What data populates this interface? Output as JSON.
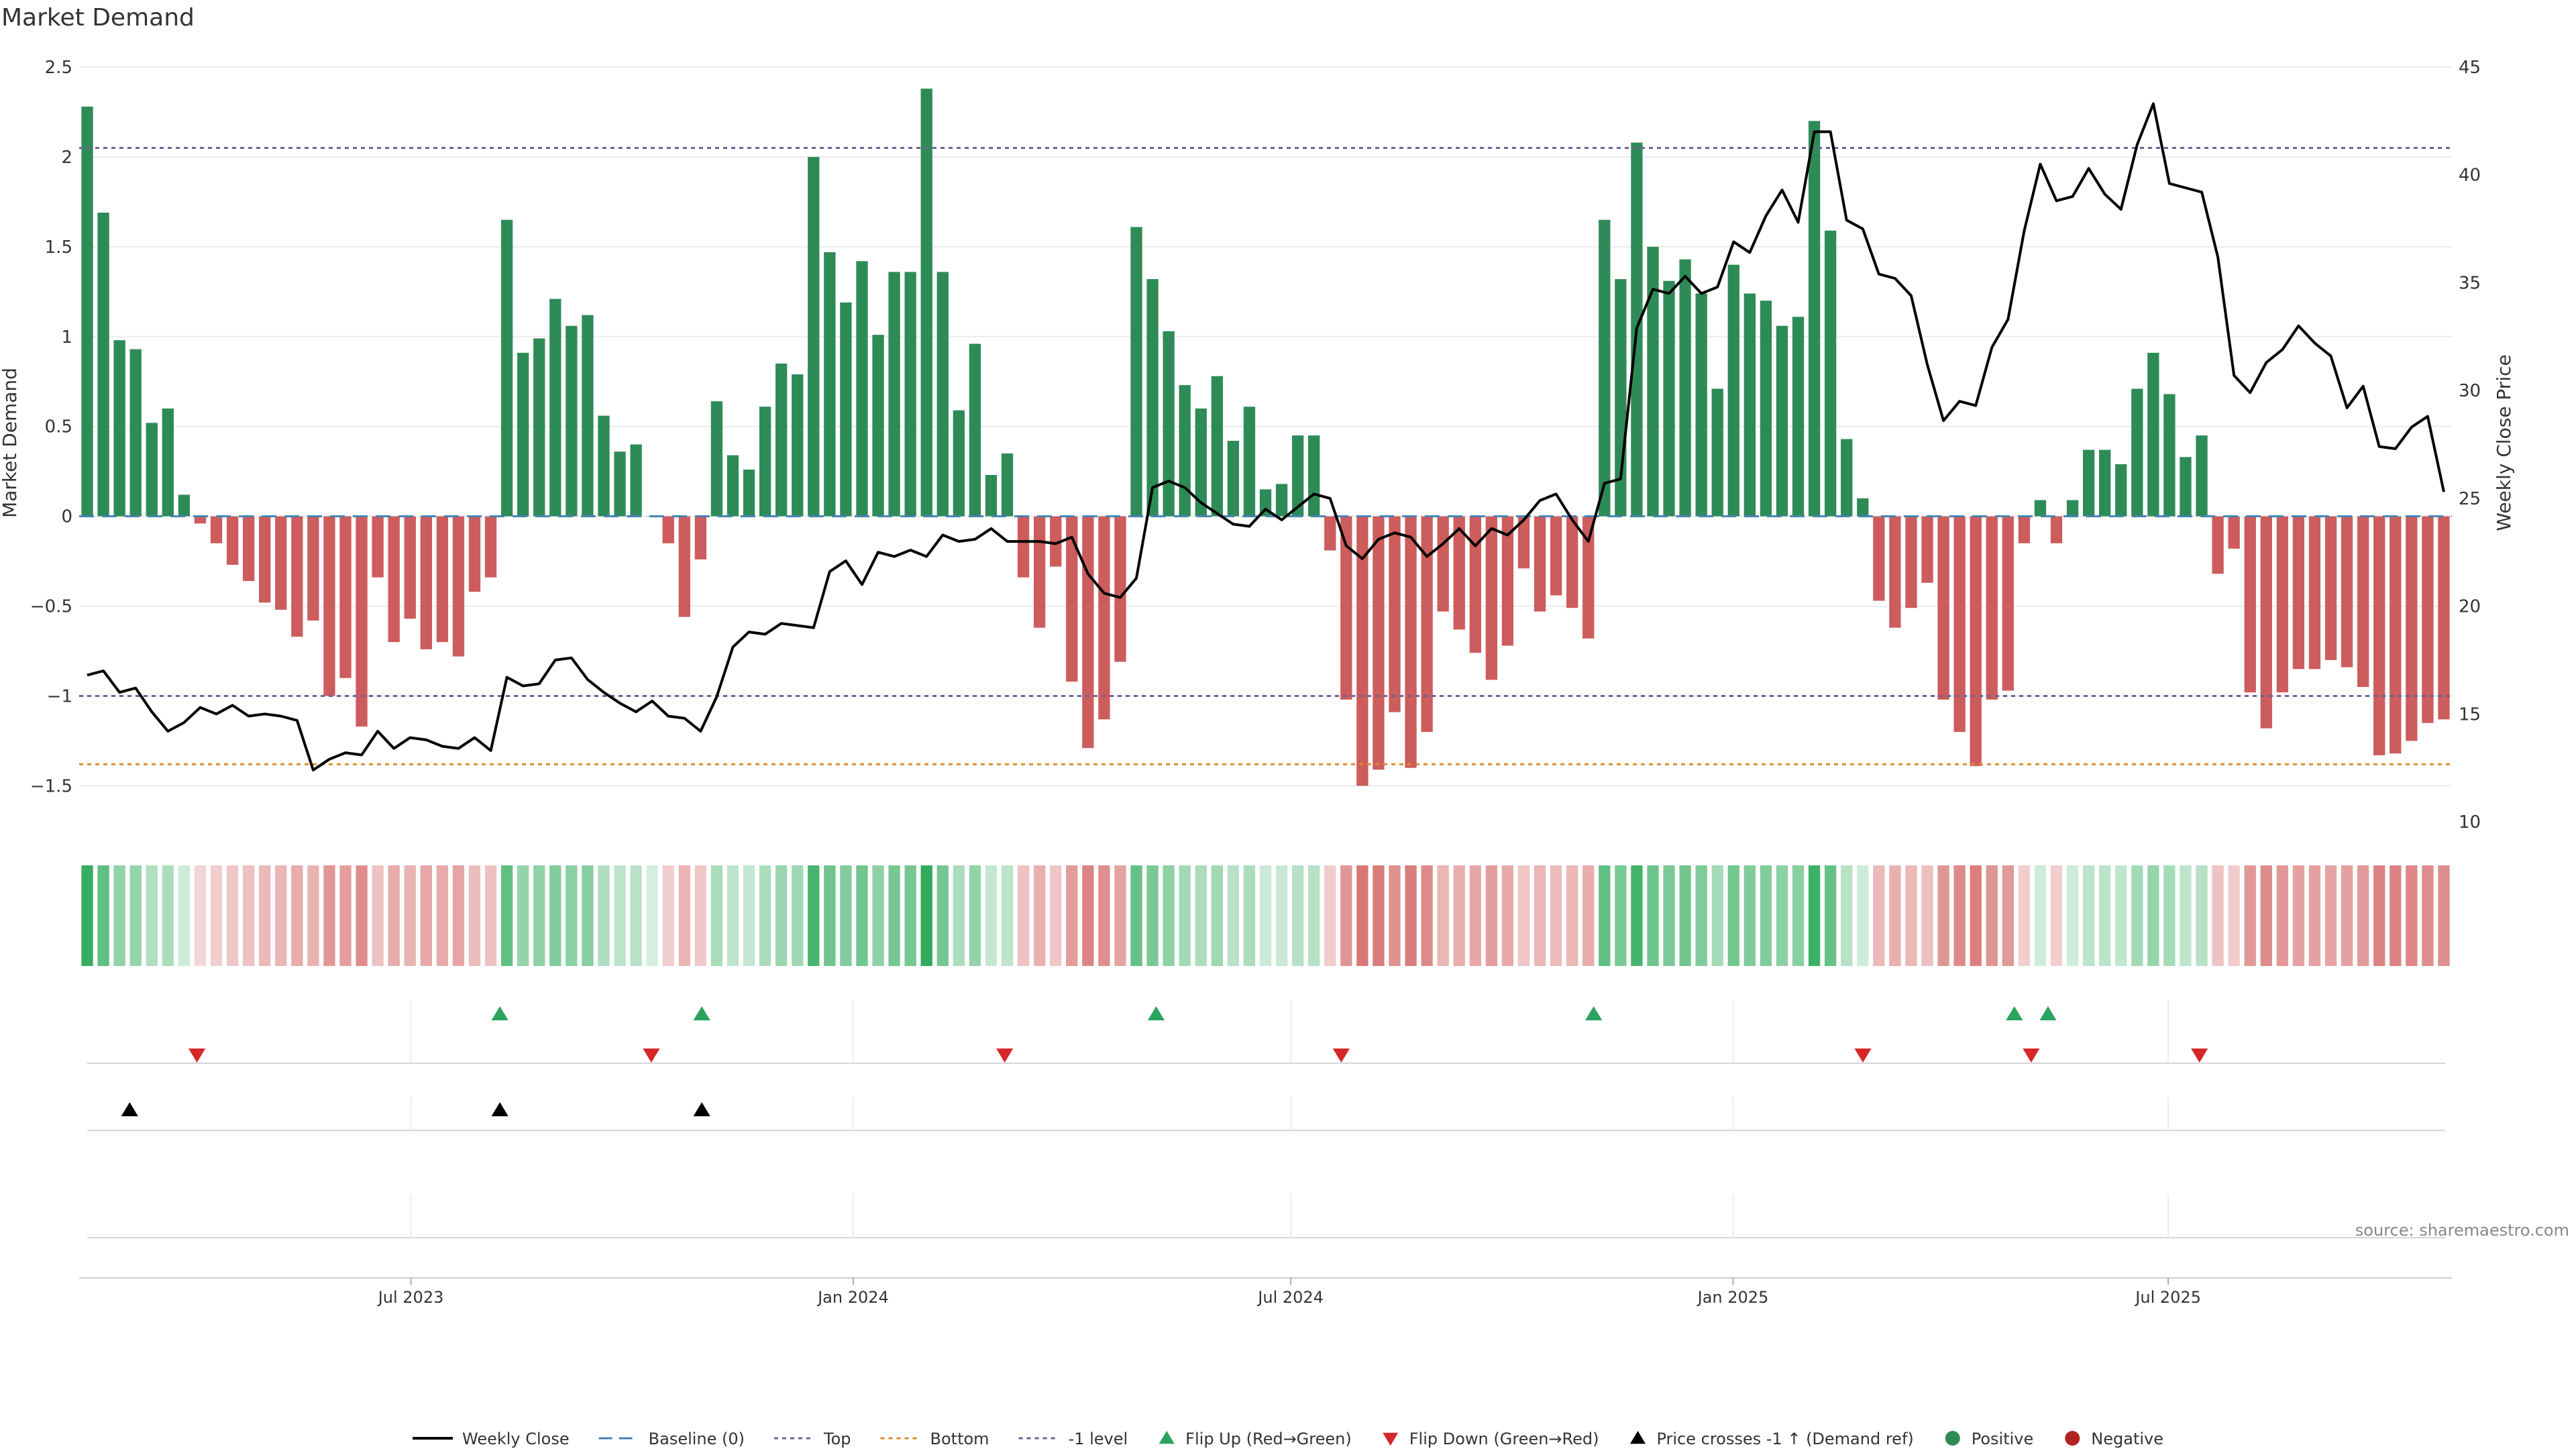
{
  "chart_data": {
    "type": "bar",
    "title": "Market Demand",
    "ylabel_left": "Market Demand",
    "ylabel_right": "Weekly Close Price",
    "ylim_left": [
      -1.7,
      2.5
    ],
    "ylim_right": [
      10,
      45
    ],
    "yticks_left": [
      2.5,
      2,
      1.5,
      1,
      0.5,
      0,
      -0.5,
      -1,
      -1.5
    ],
    "ytick_labels_left": [
      "2.5",
      "2",
      "1.5",
      "1",
      "0.5",
      "0",
      "−0.5",
      "−1",
      "−1.5"
    ],
    "yticks_right": [
      45,
      40,
      35,
      30,
      25,
      20,
      15,
      10
    ],
    "ytick_labels_right": [
      "45",
      "40",
      "35",
      "30",
      "25",
      "20",
      "15",
      "10"
    ],
    "x_start": "2023-02-13",
    "x_end": "2025-10-27",
    "x_ticks": [
      {
        "date": "2023-07-01",
        "label": "Jul 2023"
      },
      {
        "date": "2024-01-01",
        "label": "Jan 2024"
      },
      {
        "date": "2024-07-01",
        "label": "Jul 2024"
      },
      {
        "date": "2025-01-01",
        "label": "Jan 2025"
      },
      {
        "date": "2025-07-01",
        "label": "Jul 2025"
      }
    ],
    "reference_lines": {
      "top": 2.05,
      "bottom": -1.38,
      "minus_one": -1.0,
      "baseline": 0
    },
    "demand": [
      2.28,
      1.69,
      0.98,
      0.93,
      0.52,
      0.6,
      0.12,
      -0.04,
      -0.15,
      -0.27,
      -0.36,
      -0.48,
      -0.52,
      -0.67,
      -0.58,
      -1.0,
      -0.9,
      -1.17,
      -0.34,
      -0.7,
      -0.57,
      -0.74,
      -0.7,
      -0.78,
      -0.42,
      -0.34,
      1.65,
      0.91,
      0.99,
      1.21,
      1.06,
      1.12,
      0.56,
      0.36,
      0.4,
      0.0,
      -0.15,
      -0.56,
      -0.24,
      0.64,
      0.34,
      0.26,
      0.61,
      0.85,
      0.79,
      2.0,
      1.47,
      1.19,
      1.42,
      1.01,
      1.36,
      1.36,
      2.38,
      1.36,
      0.59,
      0.96,
      0.23,
      0.35,
      -0.34,
      -0.62,
      -0.28,
      -0.92,
      -1.29,
      -1.13,
      -0.81,
      1.61,
      1.32,
      1.03,
      0.73,
      0.6,
      0.78,
      0.42,
      0.61,
      0.15,
      0.18,
      0.45,
      0.45,
      -0.19,
      -1.02,
      -1.5,
      -1.41,
      -1.09,
      -1.4,
      -1.2,
      -0.53,
      -0.63,
      -0.76,
      -0.91,
      -0.72,
      -0.29,
      -0.53,
      -0.44,
      -0.51,
      -0.68,
      1.65,
      1.32,
      2.08,
      1.5,
      1.31,
      1.43,
      1.24,
      0.71,
      1.4,
      1.24,
      1.2,
      1.06,
      1.11,
      2.2,
      1.59,
      0.43,
      0.1,
      -0.47,
      -0.62,
      -0.51,
      -0.37,
      -1.02,
      -1.2,
      -1.39,
      -1.02,
      -0.97,
      -0.15,
      0.09,
      -0.15,
      0.09,
      0.37,
      0.37,
      0.29,
      0.71,
      0.91,
      0.68,
      0.33,
      0.45,
      -0.32,
      -0.18,
      -0.98,
      -1.18,
      -0.98,
      -0.85,
      -0.85,
      -0.8,
      -0.84,
      -0.95,
      -1.33,
      -1.32,
      -1.25,
      -1.15,
      -1.13
    ],
    "weekly_close": [
      16.8,
      17.0,
      16.0,
      16.2,
      15.1,
      14.2,
      14.6,
      15.3,
      15.0,
      15.4,
      14.9,
      15.0,
      14.9,
      14.7,
      12.4,
      12.9,
      13.2,
      13.1,
      14.2,
      13.4,
      13.9,
      13.8,
      13.5,
      13.4,
      13.9,
      13.3,
      16.7,
      16.3,
      16.4,
      17.5,
      17.6,
      16.6,
      16.0,
      15.5,
      15.1,
      15.6,
      14.9,
      14.8,
      14.2,
      15.8,
      18.1,
      18.8,
      18.7,
      19.2,
      19.1,
      19.0,
      21.6,
      22.1,
      21.0,
      22.5,
      22.3,
      22.6,
      22.3,
      23.3,
      23.0,
      23.1,
      23.6,
      23.0,
      23.0,
      23.0,
      22.9,
      23.2,
      21.5,
      20.6,
      20.4,
      21.3,
      25.5,
      25.8,
      25.5,
      24.8,
      24.3,
      23.8,
      23.7,
      24.5,
      24.0,
      24.6,
      25.2,
      25.0,
      22.8,
      22.2,
      23.1,
      23.4,
      23.2,
      22.3,
      22.9,
      23.6,
      22.8,
      23.6,
      23.3,
      24.0,
      24.9,
      25.2,
      24.0,
      23.0,
      25.7,
      25.9,
      32.9,
      34.7,
      34.5,
      35.3,
      34.5,
      34.8,
      36.9,
      36.4,
      38.1,
      39.3,
      37.8,
      42.0,
      42.0,
      37.9,
      37.5,
      35.4,
      35.2,
      34.4,
      31.2,
      28.6,
      29.5,
      29.3,
      32.0,
      33.3,
      37.4,
      40.5,
      38.8,
      39.0,
      40.3,
      39.1,
      38.4,
      41.4,
      43.3,
      39.6,
      39.4,
      39.2,
      36.2,
      30.7,
      29.9,
      31.3,
      31.9,
      33.0,
      32.2,
      31.6,
      29.2,
      30.2,
      27.4,
      27.3,
      28.3,
      28.8,
      25.3
    ],
    "flip_up_dates": [
      "2023-08-07",
      "2023-10-30",
      "2024-05-06",
      "2024-11-04",
      "2025-04-28",
      "2025-05-12"
    ],
    "flip_down_dates": [
      "2023-04-03",
      "2023-10-09",
      "2024-03-04",
      "2024-07-22",
      "2025-02-24",
      "2025-05-05",
      "2025-07-14"
    ],
    "price_cross_dates": [
      "2023-03-06",
      "2023-08-07",
      "2023-10-30"
    ],
    "colors": {
      "positive": "#2e8b57",
      "negative": "#cd5c5c",
      "weekly_close": "#000000",
      "baseline": "#4682b4",
      "top": "#6f6296",
      "bottom": "#e08a2a",
      "minus_one": "#6f6296",
      "flip_up": "#2ca25f",
      "flip_down": "#d62728",
      "price_cross": "#000000"
    }
  },
  "source_note": "source: sharemaestro.com",
  "legend": [
    {
      "label": "Weekly Close",
      "kind": "line",
      "color": "#000000"
    },
    {
      "label": "Baseline (0)",
      "kind": "dash",
      "color": "#4682b4"
    },
    {
      "label": "Top",
      "kind": "dot",
      "color": "#6f6296"
    },
    {
      "label": "Bottom",
      "kind": "dot",
      "color": "#e08a2a"
    },
    {
      "label": "-1 level",
      "kind": "dot",
      "color": "#6f6296"
    },
    {
      "label": "Flip Up (Red→Green)",
      "kind": "tri-up",
      "color": "#2ca25f"
    },
    {
      "label": "Flip Down (Green→Red)",
      "kind": "tri-down",
      "color": "#d62728"
    },
    {
      "label": "Price crosses -1 ↑ (Demand ref)",
      "kind": "tri-up",
      "color": "#000000"
    },
    {
      "label": "Positive",
      "kind": "circle",
      "color": "#2e8b57"
    },
    {
      "label": "Negative",
      "kind": "circle",
      "color": "#b22222"
    }
  ]
}
